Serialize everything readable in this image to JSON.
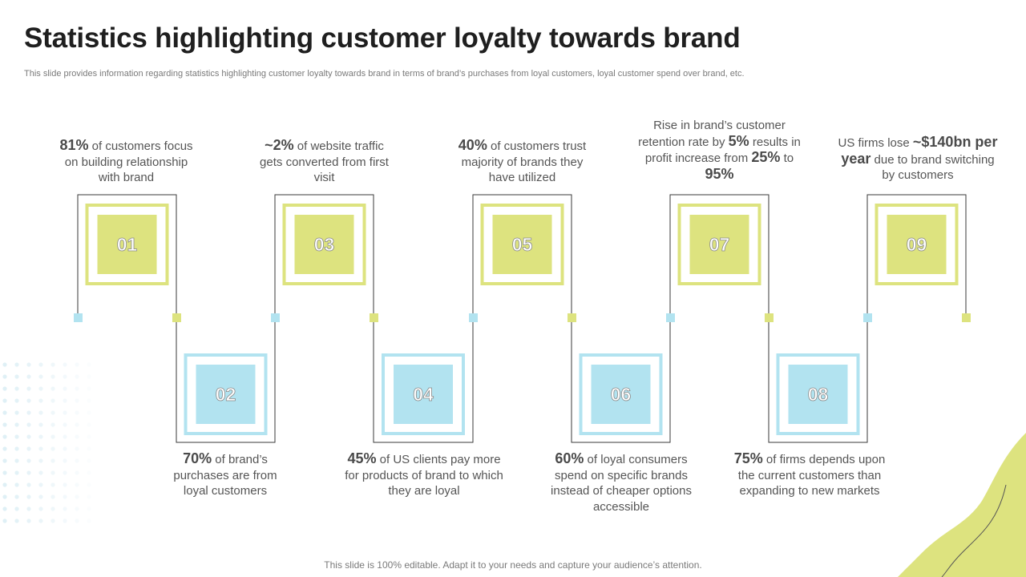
{
  "title": "Statistics highlighting customer loyalty towards brand",
  "subtitle": "This slide provides information regarding statistics highlighting customer loyalty towards brand in terms of brand’s purchases from loyal customers, loyal customer spend over brand, etc.",
  "footer": "This slide is 100% editable. Adapt it to your needs and capture your audience’s attention.",
  "colors": {
    "yellow_green": "#dde37f",
    "light_blue": "#b2e3f0",
    "line": "#3a3a3a",
    "number_fill": "#ffffff"
  },
  "steps": [
    {
      "number": "01",
      "color": "yellow",
      "position": "top",
      "text": [
        [
          "b",
          "81%"
        ],
        [
          "t",
          " of customers focus on building relationship with brand"
        ]
      ]
    },
    {
      "number": "02",
      "color": "blue",
      "position": "bottom",
      "text": [
        [
          "b",
          "70%"
        ],
        [
          "t",
          " of brand’s purchases are from loyal customers"
        ]
      ]
    },
    {
      "number": "03",
      "color": "yellow",
      "position": "top",
      "text": [
        [
          "b",
          "~2%"
        ],
        [
          "t",
          " of website traffic gets converted from first visit"
        ]
      ]
    },
    {
      "number": "04",
      "color": "blue",
      "position": "bottom",
      "text": [
        [
          "b",
          "45%"
        ],
        [
          "t",
          " of US clients pay more for products of brand to which they are loyal"
        ]
      ]
    },
    {
      "number": "05",
      "color": "yellow",
      "position": "top",
      "text": [
        [
          "b",
          "40%"
        ],
        [
          "t",
          " of customers trust majority of brands they have utilized"
        ]
      ]
    },
    {
      "number": "06",
      "color": "blue",
      "position": "bottom",
      "text": [
        [
          "b",
          "60%"
        ],
        [
          "t",
          " of loyal consumers spend on specific brands instead of cheaper options accessible"
        ]
      ]
    },
    {
      "number": "07",
      "color": "yellow",
      "position": "top",
      "text": [
        [
          "t",
          "Rise in brand’s customer retention rate by "
        ],
        [
          "b",
          "5%"
        ],
        [
          "t",
          " results in profit increase from "
        ],
        [
          "b",
          "25%"
        ],
        [
          "t",
          " to "
        ],
        [
          "b",
          "95%"
        ]
      ]
    },
    {
      "number": "08",
      "color": "blue",
      "position": "bottom",
      "text": [
        [
          "b",
          "75%"
        ],
        [
          "t",
          " of firms depends upon the current customers than expanding to new markets"
        ]
      ]
    },
    {
      "number": "09",
      "color": "yellow",
      "position": "top",
      "text": [
        [
          "t",
          "US firms lose "
        ],
        [
          "b",
          "~$140bn per year"
        ],
        [
          "t",
          " due to brand switching by customers"
        ]
      ]
    }
  ]
}
